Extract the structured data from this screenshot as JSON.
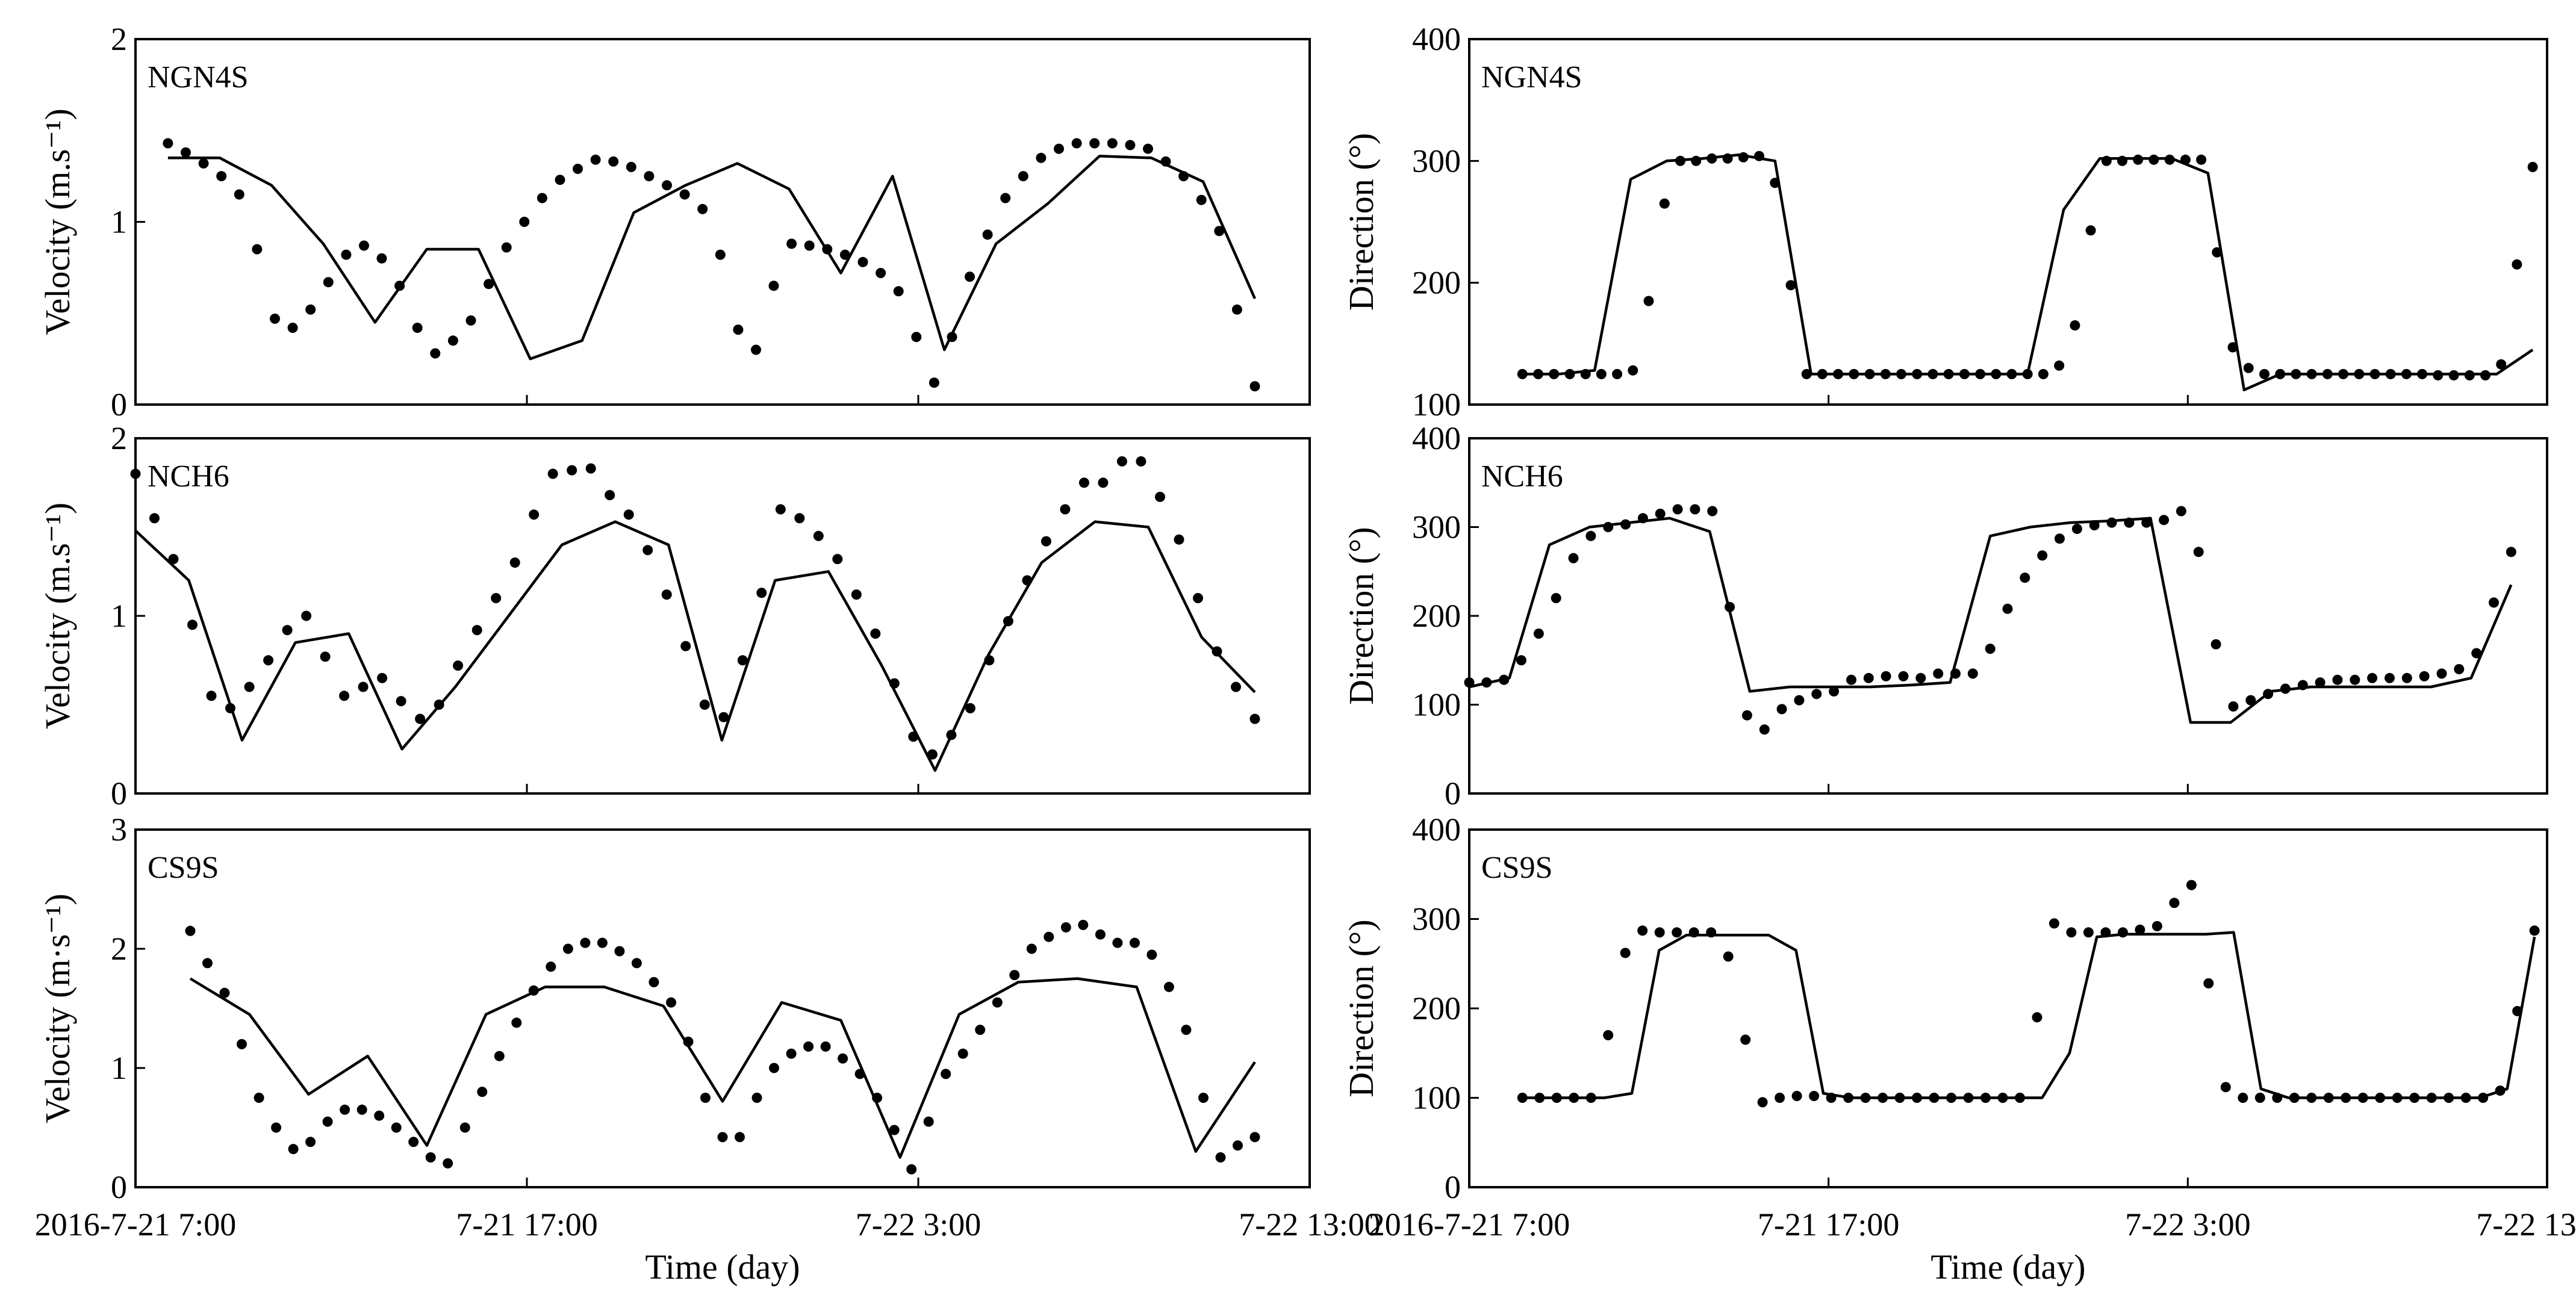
{
  "chart_data": [
    {
      "type": "line",
      "station": "NGN4S",
      "ylabel": "Velocity (m.s⁻¹)",
      "ylim": [
        0,
        2
      ],
      "yticks": [
        "0",
        "1",
        "2"
      ],
      "xlim": [
        0,
        30
      ],
      "simulated": [
        1.35,
        1.35,
        1.2,
        0.88,
        0.45,
        0.85,
        0.85,
        0.25,
        0.35,
        1.05,
        1.2,
        1.32,
        1.18,
        0.72,
        1.25,
        0.3,
        0.88,
        1.1,
        1.36,
        1.35,
        1.22,
        0.58
      ],
      "observed": [
        1.43,
        1.38,
        1.32,
        1.25,
        1.15,
        0.85,
        0.47,
        0.42,
        0.52,
        0.67,
        0.82,
        0.87,
        0.8,
        0.65,
        0.42,
        0.28,
        0.35,
        0.46,
        0.66,
        0.86,
        1.0,
        1.13,
        1.23,
        1.29,
        1.34,
        1.33,
        1.3,
        1.25,
        1.2,
        1.15,
        1.07,
        0.82,
        0.41,
        0.3,
        0.65,
        0.88,
        0.87,
        0.85,
        0.82,
        0.78,
        0.72,
        0.62,
        0.37,
        0.12,
        0.37,
        0.7,
        0.93,
        1.13,
        1.25,
        1.35,
        1.4,
        1.43,
        1.43,
        1.43,
        1.42,
        1.4,
        1.33,
        1.25,
        1.12,
        0.95,
        0.52,
        0.1
      ]
    },
    {
      "type": "line",
      "station": "NCH6",
      "ylabel": "Velocity (m.s⁻¹)",
      "ylim": [
        0,
        2
      ],
      "yticks": [
        "0",
        "1",
        "2"
      ],
      "xlim": [
        0,
        30
      ],
      "simulated": [
        1.48,
        1.2,
        0.3,
        0.85,
        0.9,
        0.25,
        0.6,
        1.0,
        1.4,
        1.53,
        1.4,
        0.3,
        1.2,
        1.25,
        0.72,
        0.13,
        0.78,
        1.3,
        1.53,
        1.5,
        0.88,
        0.57
      ],
      "observed": [
        1.8,
        1.55,
        1.32,
        0.95,
        0.55,
        0.48,
        0.6,
        0.75,
        0.92,
        1.0,
        0.77,
        0.55,
        0.6,
        0.65,
        0.52,
        0.42,
        0.5,
        0.72,
        0.92,
        1.1,
        1.3,
        1.57,
        1.8,
        1.82,
        1.83,
        1.68,
        1.57,
        1.37,
        1.12,
        0.83,
        0.5,
        0.43,
        0.75,
        1.13,
        1.6,
        1.55,
        1.45,
        1.32,
        1.12,
        0.9,
        0.62,
        0.32,
        0.22,
        0.33,
        0.48,
        0.75,
        0.97,
        1.2,
        1.42,
        1.6,
        1.75,
        1.75,
        1.87,
        1.87,
        1.67,
        1.43,
        1.1,
        0.8,
        0.6,
        0.42
      ]
    },
    {
      "type": "line",
      "station": "CS9S",
      "ylabel": "Velocity (m·s⁻¹)",
      "ylim": [
        0,
        3
      ],
      "yticks": [
        "0",
        "1",
        "2",
        "3"
      ],
      "xlim": [
        0,
        30
      ],
      "simulated": [
        1.75,
        1.45,
        0.78,
        1.1,
        0.35,
        1.45,
        1.68,
        1.68,
        1.52,
        0.72,
        1.55,
        1.4,
        0.25,
        1.45,
        1.72,
        1.75,
        1.68,
        0.3,
        1.05
      ],
      "observed": [
        2.15,
        1.88,
        1.63,
        1.2,
        0.75,
        0.5,
        0.32,
        0.38,
        0.55,
        0.65,
        0.65,
        0.6,
        0.5,
        0.38,
        0.25,
        0.2,
        0.5,
        0.8,
        1.1,
        1.38,
        1.65,
        1.85,
        2.0,
        2.05,
        2.05,
        1.98,
        1.88,
        1.72,
        1.55,
        1.22,
        0.75,
        0.42,
        0.42,
        0.75,
        1.0,
        1.12,
        1.18,
        1.18,
        1.08,
        0.95,
        0.75,
        0.48,
        0.15,
        0.55,
        0.95,
        1.12,
        1.32,
        1.55,
        1.78,
        2.0,
        2.1,
        2.18,
        2.2,
        2.12,
        2.05,
        2.05,
        1.95,
        1.68,
        1.32,
        0.75,
        0.25,
        0.35,
        0.42
      ]
    },
    {
      "type": "line",
      "station": "NGN4S",
      "ylabel": "Direction (°)",
      "ylim": [
        100,
        400
      ],
      "yticks": [
        "100",
        "200",
        "300",
        "400"
      ],
      "xlim": [
        0,
        30
      ],
      "simulated": [
        125,
        125,
        128,
        285,
        300,
        302,
        305,
        300,
        125,
        125,
        125,
        125,
        125,
        125,
        125,
        260,
        302,
        302,
        302,
        290,
        112,
        125,
        125,
        125,
        125,
        125,
        125,
        125,
        145
      ],
      "observed": [
        125,
        125,
        125,
        125,
        125,
        125,
        125,
        128,
        185,
        265,
        300,
        300,
        302,
        302,
        303,
        304,
        282,
        198,
        125,
        125,
        125,
        125,
        125,
        125,
        125,
        125,
        125,
        125,
        125,
        125,
        125,
        125,
        125,
        125,
        132,
        165,
        243,
        300,
        300,
        301,
        301,
        301,
        301,
        301,
        225,
        147,
        130,
        125,
        125,
        125,
        125,
        125,
        125,
        125,
        125,
        125,
        125,
        125,
        124,
        124,
        124,
        124,
        133,
        215,
        295
      ]
    },
    {
      "type": "line",
      "station": "NCH6",
      "ylabel": "Direction (°)",
      "ylim": [
        0,
        400
      ],
      "yticks": [
        "0",
        "100",
        "200",
        "300",
        "400"
      ],
      "xlim": [
        0,
        30
      ],
      "simulated": [
        120,
        130,
        280,
        300,
        305,
        310,
        295,
        115,
        120,
        120,
        120,
        122,
        125,
        290,
        300,
        305,
        307,
        310,
        80,
        80,
        115,
        120,
        120,
        120,
        120,
        130,
        235
      ],
      "observed": [
        125,
        125,
        128,
        150,
        180,
        220,
        265,
        290,
        300,
        303,
        310,
        315,
        320,
        320,
        318,
        210,
        88,
        72,
        95,
        105,
        112,
        115,
        128,
        130,
        132,
        132,
        130,
        135,
        135,
        135,
        163,
        208,
        243,
        268,
        287,
        298,
        302,
        305,
        305,
        305,
        308,
        318,
        272,
        168,
        98,
        105,
        112,
        118,
        122,
        125,
        128,
        128,
        130,
        130,
        130,
        132,
        135,
        140,
        158,
        215,
        272
      ]
    },
    {
      "type": "line",
      "station": "CS9S",
      "ylabel": "Direction (°)",
      "ylim": [
        0,
        400
      ],
      "yticks": [
        "0",
        "100",
        "200",
        "300",
        "400"
      ],
      "xlim": [
        0,
        30
      ],
      "simulated": [
        100,
        100,
        100,
        100,
        105,
        265,
        282,
        282,
        282,
        282,
        265,
        105,
        100,
        100,
        100,
        100,
        100,
        100,
        100,
        100,
        150,
        280,
        283,
        283,
        283,
        283,
        285,
        110,
        100,
        100,
        100,
        100,
        100,
        100,
        100,
        100,
        110,
        280
      ],
      "observed": [
        100,
        100,
        100,
        100,
        100,
        170,
        262,
        287,
        285,
        285,
        285,
        285,
        258,
        165,
        95,
        100,
        102,
        102,
        100,
        100,
        100,
        100,
        100,
        100,
        100,
        100,
        100,
        100,
        100,
        100,
        190,
        295,
        285,
        285,
        285,
        285,
        288,
        292,
        318,
        338,
        228,
        112,
        100,
        100,
        100,
        100,
        100,
        100,
        100,
        100,
        100,
        100,
        100,
        100,
        100,
        100,
        100,
        108,
        197,
        287
      ]
    }
  ],
  "x_axis": {
    "tick_labels": [
      "2016-7-21 7:00",
      "7-21 17:00",
      "7-22 3:00",
      "7-22 13:00"
    ],
    "tick_values": [
      0,
      10,
      20,
      30
    ],
    "xlabel": "Time  (day)"
  }
}
